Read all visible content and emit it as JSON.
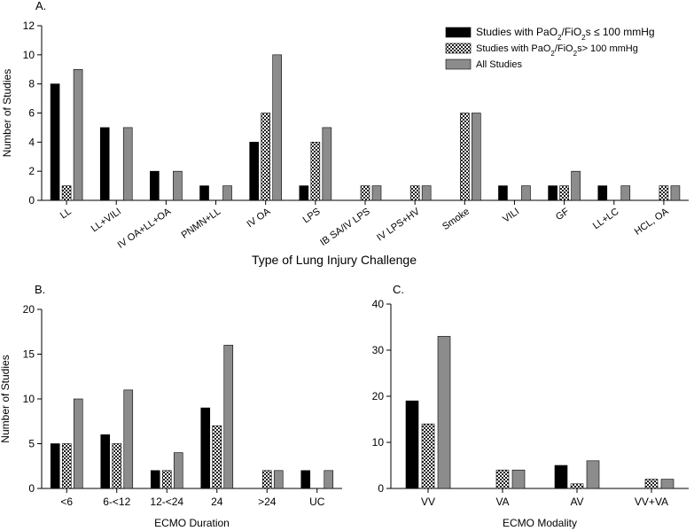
{
  "colors": {
    "black": "#000000",
    "checker_dark": "#222222",
    "gray": "#8c8c8c",
    "axis": "#000000"
  },
  "legend": {
    "entries": [
      {
        "pre": "Studies with PaO",
        "sub": "2",
        "mid": "/FiO",
        "sub2": "2",
        "post": "s ≤ 100 mmHg",
        "style": "black"
      },
      {
        "pre": "Studies with PaO",
        "sub": "2",
        "mid": "/FiO",
        "sub2": "2",
        "post": "s> 100 mmHg",
        "style": "checker"
      },
      {
        "pre": "All Studies",
        "sub": "",
        "mid": "",
        "sub2": "",
        "post": "",
        "style": "gray"
      }
    ]
  },
  "chart_data": [
    {
      "panel": "A.",
      "type": "bar",
      "xlabel": "Type of Lung Injury Challenge",
      "ylabel": "Number of Studies",
      "ylim": [
        0,
        12
      ],
      "yticks": [
        0,
        2,
        4,
        6,
        8,
        10,
        12
      ],
      "categories": [
        "LL",
        "LL+VILI",
        "IV OA+LL+OA",
        "PNMN+LL",
        "IV OA",
        "LPS",
        "IB SA/IV LPS",
        "IV LPS+HV",
        "Smoke",
        "VILI",
        "GF",
        "LL+LC",
        "HCL, OA"
      ],
      "series": [
        {
          "name": "Studies with PaO2/FiO2s ≤ 100 mmHg",
          "values": [
            8,
            5,
            2,
            1,
            4,
            1,
            0,
            0,
            0,
            1,
            1,
            1,
            0
          ]
        },
        {
          "name": "Studies with PaO2/FiO2s> 100 mmHg",
          "values": [
            1,
            0,
            0,
            0,
            6,
            4,
            1,
            1,
            6,
            0,
            1,
            0,
            1
          ]
        },
        {
          "name": "All Studies",
          "values": [
            9,
            5,
            2,
            1,
            10,
            5,
            1,
            1,
            6,
            1,
            2,
            1,
            1
          ]
        }
      ],
      "tick_rotation": -35
    },
    {
      "panel": "B.",
      "type": "bar",
      "xlabel": "ECMO Duration",
      "ylabel": "Number of Studies",
      "ylim": [
        0,
        20
      ],
      "yticks": [
        0,
        5,
        10,
        15,
        20
      ],
      "categories": [
        "<6",
        "6-<12",
        "12-<24",
        "24",
        ">24",
        "UC"
      ],
      "series": [
        {
          "name": "Studies with PaO2/FiO2s ≤ 100 mmHg",
          "values": [
            5,
            6,
            2,
            9,
            0,
            2
          ]
        },
        {
          "name": "Studies with PaO2/FiO2s> 100 mmHg",
          "values": [
            5,
            5,
            2,
            7,
            2,
            0
          ]
        },
        {
          "name": "All Studies",
          "values": [
            10,
            11,
            4,
            16,
            2,
            2
          ]
        }
      ]
    },
    {
      "panel": "C.",
      "type": "bar",
      "xlabel": "ECMO Modality",
      "ylabel": "",
      "ylim": [
        0,
        40
      ],
      "yticks": [
        0,
        10,
        20,
        30,
        40
      ],
      "categories": [
        "VV",
        "VA",
        "AV",
        "VV+VA"
      ],
      "series": [
        {
          "name": "Studies with PaO2/FiO2s ≤ 100 mmHg",
          "values": [
            19,
            0,
            5,
            0
          ]
        },
        {
          "name": "Studies with PaO2/FiO2s> 100 mmHg",
          "values": [
            14,
            4,
            1,
            2
          ]
        },
        {
          "name": "All Studies",
          "values": [
            33,
            4,
            6,
            2
          ]
        }
      ]
    }
  ]
}
